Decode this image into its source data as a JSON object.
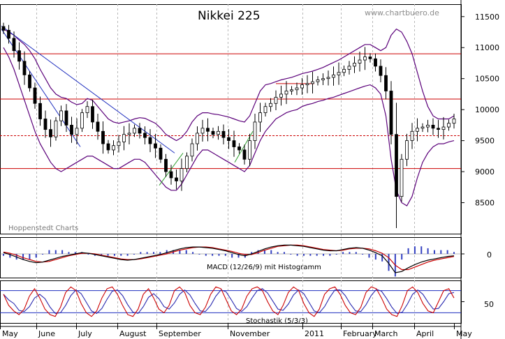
{
  "chart_data": {
    "type": "candlestick",
    "title": "Nikkei 225",
    "watermark": "www.chartbuero.de",
    "source": "Hoppenstedt Charts",
    "main_panel": {
      "y_ticks": [
        "11500",
        "11000",
        "10500",
        "10000",
        "9500",
        "9000",
        "8500"
      ],
      "ylim": [
        8000,
        11700
      ],
      "horizontal_levels": [
        10900,
        10170,
        9580,
        9050
      ],
      "dashed_level": 9580,
      "colors": {
        "candles": "#000000",
        "bollinger": "#5b007a",
        "levels": "#cc0000",
        "trend_down": "#1f2fbf",
        "trend_up": "#2e9e2e"
      },
      "closes": [
        11280,
        11150,
        10950,
        10780,
        10560,
        10350,
        10100,
        9850,
        9680,
        9560,
        9820,
        9980,
        9750,
        9600,
        9700,
        9950,
        10050,
        9800,
        9650,
        9450,
        9350,
        9420,
        9480,
        9600,
        9620,
        9700,
        9620,
        9550,
        9450,
        9380,
        9200,
        9000,
        8900,
        8850,
        9050,
        9250,
        9450,
        9620,
        9700,
        9650,
        9600,
        9650,
        9550,
        9500,
        9400,
        9350,
        9200,
        9500,
        9800,
        9950,
        10050,
        10100,
        10200,
        10250,
        10300,
        10320,
        10350,
        10400,
        10420,
        10450,
        10480,
        10500,
        10520,
        10560,
        10600,
        10650,
        10700,
        10750,
        10800,
        10850,
        10820,
        10700,
        10550,
        10300,
        9600,
        8600,
        9200,
        9500,
        9650,
        9700,
        9720,
        9750,
        9700,
        9680,
        9720,
        9780,
        9850
      ],
      "upper_band": [
        11300,
        11250,
        11200,
        11120,
        11050,
        10950,
        10820,
        10650,
        10500,
        10350,
        10250,
        10200,
        10180,
        10120,
        10080,
        10100,
        10180,
        10150,
        10050,
        9950,
        9850,
        9800,
        9780,
        9800,
        9820,
        9850,
        9870,
        9860,
        9820,
        9780,
        9700,
        9600,
        9550,
        9500,
        9550,
        9650,
        9800,
        9900,
        9950,
        9950,
        9930,
        9920,
        9900,
        9880,
        9850,
        9820,
        9800,
        9900,
        10100,
        10300,
        10400,
        10420,
        10450,
        10480,
        10500,
        10520,
        10550,
        10580,
        10600,
        10620,
        10650,
        10680,
        10720,
        10760,
        10800,
        10850,
        10900,
        10950,
        11000,
        11050,
        11050,
        11000,
        10950,
        11000,
        11200,
        11300,
        11250,
        11100,
        10900,
        10600,
        10300,
        10050,
        9900,
        9850,
        9850,
        9850,
        9900
      ],
      "lower_band": [
        11000,
        10850,
        10650,
        10400,
        10150,
        9900,
        9650,
        9450,
        9300,
        9150,
        9050,
        9000,
        9050,
        9100,
        9150,
        9200,
        9250,
        9250,
        9200,
        9150,
        9100,
        9050,
        9050,
        9100,
        9150,
        9200,
        9200,
        9150,
        9050,
        8950,
        8850,
        8750,
        8700,
        8700,
        8800,
        8950,
        9100,
        9250,
        9350,
        9350,
        9300,
        9250,
        9200,
        9150,
        9100,
        9050,
        9000,
        9100,
        9300,
        9500,
        9650,
        9750,
        9850,
        9900,
        9950,
        9980,
        10000,
        10050,
        10080,
        10100,
        10130,
        10150,
        10180,
        10200,
        10230,
        10260,
        10290,
        10320,
        10350,
        10380,
        10400,
        10350,
        10250,
        9900,
        9200,
        8700,
        8500,
        8450,
        8600,
        8900,
        9150,
        9300,
        9400,
        9450,
        9450,
        9480,
        9500
      ]
    },
    "macd_panel": {
      "label": "MACD (12/26/9) mit Histogramm",
      "y_tick": "0",
      "colors": {
        "macd": "#000000",
        "signal": "#cc0000",
        "histogram": "#3340c0"
      },
      "macd": [
        0.2,
        -0.1,
        -0.5,
        -0.9,
        -1.2,
        -1.4,
        -1.3,
        -1.0,
        -0.7,
        -0.4,
        -0.2,
        0.0,
        0.2,
        0.1,
        -0.1,
        -0.3,
        -0.5,
        -0.7,
        -0.9,
        -1.0,
        -0.9,
        -0.7,
        -0.5,
        -0.3,
        -0.1,
        0.2,
        0.5,
        0.8,
        1.0,
        1.1,
        1.1,
        1.0,
        0.9,
        0.7,
        0.5,
        0.2,
        -0.1,
        -0.3,
        0.0,
        0.4,
        0.8,
        1.1,
        1.3,
        1.4,
        1.4,
        1.3,
        1.2,
        1.0,
        0.8,
        0.6,
        0.5,
        0.5,
        0.7,
        0.9,
        1.0,
        0.9,
        0.6,
        0.2,
        -0.3,
        -1.5,
        -3.0,
        -2.8,
        -2.2,
        -1.7,
        -1.3,
        -1.0,
        -0.8,
        -0.6,
        -0.4,
        -0.3
      ],
      "signal": [
        0.3,
        0.1,
        -0.2,
        -0.6,
        -0.9,
        -1.2,
        -1.3,
        -1.2,
        -0.9,
        -0.6,
        -0.3,
        -0.1,
        0.1,
        0.1,
        0.0,
        -0.2,
        -0.4,
        -0.6,
        -0.8,
        -0.9,
        -0.9,
        -0.8,
        -0.6,
        -0.4,
        -0.2,
        0.0,
        0.3,
        0.6,
        0.8,
        1.0,
        1.1,
        1.1,
        1.0,
        0.8,
        0.6,
        0.4,
        0.1,
        -0.1,
        -0.1,
        0.2,
        0.6,
        0.9,
        1.2,
        1.3,
        1.4,
        1.4,
        1.3,
        1.1,
        0.9,
        0.7,
        0.6,
        0.5,
        0.6,
        0.8,
        0.9,
        0.9,
        0.8,
        0.5,
        0.1,
        -0.6,
        -1.8,
        -2.5,
        -2.5,
        -2.1,
        -1.7,
        -1.3,
        -1.0,
        -0.8,
        -0.6,
        -0.4
      ]
    },
    "stoch_panel": {
      "label": "Stochastik (5/3/3)",
      "y_tick": "50",
      "levels": [
        80,
        20
      ],
      "colors": {
        "k": "#cc0000",
        "d": "#2a2ab0",
        "levels": "#1f2fbf"
      },
      "values": [
        70,
        40,
        25,
        15,
        30,
        65,
        85,
        60,
        30,
        15,
        10,
        35,
        75,
        90,
        80,
        45,
        20,
        10,
        25,
        60,
        85,
        90,
        70,
        40,
        15,
        10,
        30,
        70,
        85,
        60,
        30,
        20,
        40,
        80,
        90,
        75,
        40,
        20,
        15,
        35,
        70,
        90,
        85,
        55,
        25,
        15,
        30,
        65,
        85,
        90,
        80,
        50,
        25,
        15,
        40,
        75,
        90,
        80,
        45,
        20,
        10,
        30,
        70,
        85,
        90,
        70,
        40,
        20,
        15,
        35,
        75,
        90,
        85,
        60,
        30,
        15,
        10,
        40,
        80,
        90,
        75,
        45,
        25,
        20,
        50,
        80,
        85,
        60
      ]
    },
    "x_ticks": [
      "May",
      "June",
      "July",
      "August",
      "September",
      "November",
      "2011",
      "February",
      "March",
      "April",
      "May"
    ]
  }
}
